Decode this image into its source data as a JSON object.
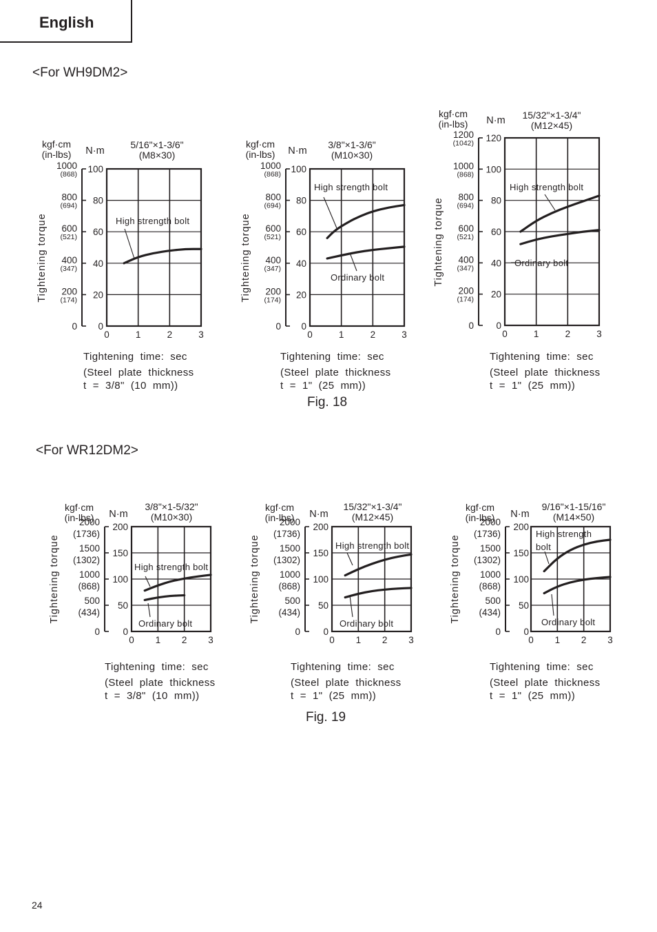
{
  "header": {
    "language": "English"
  },
  "sections": [
    {
      "title": "<For WH9DM2>",
      "figure": "Fig. 18"
    },
    {
      "title": "<For WR12DM2>",
      "figure": "Fig. 19"
    }
  ],
  "page_number": "24",
  "chart_data": [
    {
      "type": "line",
      "model": "WH9DM2",
      "bolt_size": "5/16\"×1-3/6\"",
      "bolt_metric": "(M8×30)",
      "xlabel": "Tightening  time:  sec",
      "ylabel": "Tightening  torque",
      "unit_left": "kgf·cm",
      "unit_left_sub": "(in-lbs)",
      "unit_right": "N·m",
      "xlim": [
        0,
        3
      ],
      "ylim": [
        0,
        100
      ],
      "x_ticks": [
        "0",
        "1",
        "2",
        "3"
      ],
      "y_ticks": [
        {
          "v": 0,
          "nm": "0",
          "kgf": "0",
          "inlbs": ""
        },
        {
          "v": 20,
          "nm": "20",
          "kgf": "200",
          "inlbs": "(174)"
        },
        {
          "v": 40,
          "nm": "40",
          "kgf": "400",
          "inlbs": "(347)"
        },
        {
          "v": 60,
          "nm": "60",
          "kgf": "600",
          "inlbs": "(521)"
        },
        {
          "v": 80,
          "nm": "80",
          "kgf": "800",
          "inlbs": "(694)"
        },
        {
          "v": 100,
          "nm": "100",
          "kgf": "1000",
          "inlbs": "(868)"
        }
      ],
      "series": [
        {
          "name": "High strength bolt",
          "x": [
            0.55,
            1.0,
            1.5,
            2.0,
            2.5,
            3.0
          ],
          "y": [
            40,
            44,
            46.5,
            48,
            49,
            49
          ]
        }
      ],
      "note": [
        "(Steel  plate  thickness",
        "t  =  3/8\"  (10  mm))"
      ]
    },
    {
      "type": "line",
      "model": "WH9DM2",
      "bolt_size": "3/8\"×1-3/6\"",
      "bolt_metric": "(M10×30)",
      "xlabel": "Tightening  time:  sec",
      "ylabel": "Tightening  torque",
      "unit_left": "kgf·cm",
      "unit_left_sub": "(in-lbs)",
      "unit_right": "N·m",
      "xlim": [
        0,
        3
      ],
      "ylim": [
        0,
        100
      ],
      "x_ticks": [
        "0",
        "1",
        "2",
        "3"
      ],
      "y_ticks": [
        {
          "v": 0,
          "nm": "0",
          "kgf": "0",
          "inlbs": ""
        },
        {
          "v": 20,
          "nm": "20",
          "kgf": "200",
          "inlbs": "(174)"
        },
        {
          "v": 40,
          "nm": "40",
          "kgf": "400",
          "inlbs": "(347)"
        },
        {
          "v": 60,
          "nm": "60",
          "kgf": "600",
          "inlbs": "(521)"
        },
        {
          "v": 80,
          "nm": "80",
          "kgf": "800",
          "inlbs": "(694)"
        },
        {
          "v": 100,
          "nm": "100",
          "kgf": "1000",
          "inlbs": "(868)"
        }
      ],
      "series": [
        {
          "name": "High strength bolt",
          "x": [
            0.55,
            0.8,
            1.2,
            1.6,
            2.0,
            2.5,
            3.0
          ],
          "y": [
            56,
            61,
            66,
            70,
            73,
            75.5,
            77
          ]
        },
        {
          "name": "Ordinary bolt",
          "x": [
            0.55,
            1.0,
            1.5,
            2.0,
            2.5,
            3.0
          ],
          "y": [
            43,
            45,
            47,
            48.5,
            49.5,
            50.5
          ]
        }
      ],
      "note": [
        "(Steel  plate  thickness",
        "t  =  1\"  (25  mm))"
      ]
    },
    {
      "type": "line",
      "model": "WH9DM2",
      "bolt_size": "15/32\"×1-3/4\"",
      "bolt_metric": "(M12×45)",
      "xlabel": "Tightening  time:  sec",
      "ylabel": "Tightening  torque",
      "unit_left": "kgf·cm",
      "unit_left_sub": "(in-lbs)",
      "unit_right": "N·m",
      "xlim": [
        0,
        3
      ],
      "ylim": [
        0,
        120
      ],
      "x_ticks": [
        "0",
        "1",
        "2",
        "3"
      ],
      "y_ticks": [
        {
          "v": 0,
          "nm": "0",
          "kgf": "0",
          "inlbs": ""
        },
        {
          "v": 20,
          "nm": "20",
          "kgf": "200",
          "inlbs": "(174)"
        },
        {
          "v": 40,
          "nm": "40",
          "kgf": "400",
          "inlbs": "(347)"
        },
        {
          "v": 60,
          "nm": "60",
          "kgf": "600",
          "inlbs": "(521)"
        },
        {
          "v": 80,
          "nm": "80",
          "kgf": "800",
          "inlbs": "(694)"
        },
        {
          "v": 100,
          "nm": "100",
          "kgf": "1000",
          "inlbs": "(868)"
        },
        {
          "v": 120,
          "nm": "120",
          "kgf": "1200",
          "inlbs": "(1042)"
        }
      ],
      "series": [
        {
          "name": "High strength bolt",
          "x": [
            0.5,
            1.0,
            1.5,
            2.0,
            2.5,
            3.0
          ],
          "y": [
            60,
            67,
            72,
            76,
            79.5,
            83
          ]
        },
        {
          "name": "Ordinary bolt",
          "x": [
            0.5,
            1.0,
            1.5,
            2.0,
            2.5,
            3.0
          ],
          "y": [
            52,
            55,
            57,
            58.5,
            60,
            61
          ]
        }
      ],
      "note": [
        "(Steel  plate  thickness",
        "t  =  1\"  (25  mm))"
      ]
    },
    {
      "type": "line",
      "model": "WR12DM2",
      "bolt_size": "3/8\"×1-5/32\"",
      "bolt_metric": "(M10×30)",
      "xlabel": "Tightening  time:  sec",
      "ylabel": "Tightening  torque",
      "unit_left": "kgf·cm",
      "unit_left_sub": "(in-lbs)",
      "unit_right": "N·m",
      "xlim": [
        0,
        3
      ],
      "ylim": [
        0,
        200
      ],
      "x_ticks": [
        "0",
        "1",
        "2",
        "3"
      ],
      "y_ticks": [
        {
          "v": 0,
          "nm": "0",
          "kgf": "0",
          "inlbs": ""
        },
        {
          "v": 50,
          "nm": "50",
          "kgf": "500",
          "inlbs": "(434)"
        },
        {
          "v": 100,
          "nm": "100",
          "kgf": "1000",
          "inlbs": "(868)"
        },
        {
          "v": 150,
          "nm": "150",
          "kgf": "1500",
          "inlbs": "(1302)"
        },
        {
          "v": 200,
          "nm": "200",
          "kgf": "2000",
          "inlbs": "(1736)"
        }
      ],
      "series": [
        {
          "name": "High strength bolt",
          "x": [
            0.5,
            1.0,
            1.5,
            2.0,
            2.5,
            3.0
          ],
          "y": [
            78,
            88,
            96,
            101,
            105,
            108
          ]
        },
        {
          "name": "Ordinary bolt",
          "x": [
            0.5,
            1.0,
            1.5,
            2.0
          ],
          "y": [
            60,
            65,
            68,
            69
          ]
        }
      ],
      "note": [
        "(Steel  plate  thickness",
        "t  =  3/8\"  (10  mm))"
      ]
    },
    {
      "type": "line",
      "model": "WR12DM2",
      "bolt_size": "15/32\"×1-3/4\"",
      "bolt_metric": "(M12×45)",
      "xlabel": "Tightening  time:  sec",
      "ylabel": "Tightening  torque",
      "unit_left": "kgf·cm",
      "unit_left_sub": "(in-lbs)",
      "unit_right": "N·m",
      "xlim": [
        0,
        3
      ],
      "ylim": [
        0,
        200
      ],
      "x_ticks": [
        "0",
        "1",
        "2",
        "3"
      ],
      "y_ticks": [
        {
          "v": 0,
          "nm": "0",
          "kgf": "0",
          "inlbs": ""
        },
        {
          "v": 50,
          "nm": "50",
          "kgf": "500",
          "inlbs": "(434)"
        },
        {
          "v": 100,
          "nm": "100",
          "kgf": "1000",
          "inlbs": "(868)"
        },
        {
          "v": 150,
          "nm": "150",
          "kgf": "1500",
          "inlbs": "(1302)"
        },
        {
          "v": 200,
          "nm": "200",
          "kgf": "2000",
          "inlbs": "(1736)"
        }
      ],
      "series": [
        {
          "name": "High strength bolt",
          "x": [
            0.5,
            1.0,
            1.5,
            2.0,
            2.5,
            3.0
          ],
          "y": [
            107,
            119,
            129,
            137,
            143,
            147
          ]
        },
        {
          "name": "Ordinary bolt",
          "x": [
            0.5,
            1.0,
            1.5,
            2.0,
            2.5,
            3.0
          ],
          "y": [
            65,
            72,
            77,
            80,
            82,
            83
          ]
        }
      ],
      "note": [
        "(Steel  plate  thickness",
        "t  =  1\"  (25  mm))"
      ]
    },
    {
      "type": "line",
      "model": "WR12DM2",
      "bolt_size": "9/16\"×1-15/16\"",
      "bolt_metric": "(M14×50)",
      "xlabel": "Tightening  time:  sec",
      "ylabel": "Tightening  torque",
      "unit_left": "kgf·cm",
      "unit_left_sub": "(in-lbs)",
      "unit_right": "N·m",
      "xlim": [
        0,
        3
      ],
      "ylim": [
        0,
        200
      ],
      "x_ticks": [
        "0",
        "1",
        "2",
        "3"
      ],
      "y_ticks": [
        {
          "v": 0,
          "nm": "0",
          "kgf": "0",
          "inlbs": ""
        },
        {
          "v": 50,
          "nm": "50",
          "kgf": "500",
          "inlbs": "(434)"
        },
        {
          "v": 100,
          "nm": "100",
          "kgf": "1000",
          "inlbs": "(868)"
        },
        {
          "v": 150,
          "nm": "150",
          "kgf": "1500",
          "inlbs": "(1302)"
        },
        {
          "v": 200,
          "nm": "200",
          "kgf": "2000",
          "inlbs": "(1736)"
        }
      ],
      "series": [
        {
          "name": "High strength\nbolt",
          "x": [
            0.5,
            1.0,
            1.5,
            2.0,
            2.5,
            3.0
          ],
          "y": [
            115,
            140,
            156,
            166,
            172,
            175
          ]
        },
        {
          "name": "Ordinary bolt",
          "x": [
            0.5,
            1.0,
            1.5,
            2.0,
            2.5,
            3.0
          ],
          "y": [
            73,
            86,
            94,
            99,
            102,
            104
          ]
        }
      ],
      "note": [
        "(Steel  plate  thickness",
        "t  =  1\"  (25  mm))"
      ]
    }
  ]
}
